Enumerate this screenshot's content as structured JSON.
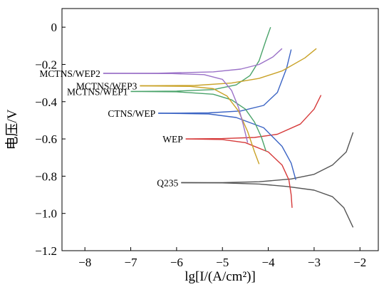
{
  "chart_data": {
    "type": "line",
    "xlabel": "lg[I/(A/cm²)]",
    "ylabel": "电压/V",
    "xlim": [
      -8.5,
      -1.6
    ],
    "ylim": [
      -1.2,
      0.1
    ],
    "xticks": [
      -8,
      -7,
      -6,
      -5,
      -4,
      -3,
      -2
    ],
    "yticks": [
      0,
      -0.2,
      -0.4,
      -0.6,
      -0.8,
      -1.0,
      -1.2
    ],
    "xtick_labels": [
      "−8",
      "−7",
      "−6",
      "−5",
      "−4",
      "−3",
      "−2"
    ],
    "ytick_labels": [
      "0",
      "−0.2",
      "−0.4",
      "−0.6",
      "−0.8",
      "−1.0",
      "−1.2"
    ],
    "grid": false,
    "series": [
      {
        "name": "Q235",
        "color": "#555555",
        "label_side": "left",
        "anodic": [
          [
            -5.9,
            -0.835
          ],
          [
            -5.0,
            -0.835
          ],
          [
            -4.2,
            -0.83
          ],
          [
            -3.5,
            -0.815
          ],
          [
            -3.0,
            -0.79
          ],
          [
            -2.6,
            -0.74
          ],
          [
            -2.3,
            -0.67
          ],
          [
            -2.15,
            -0.565
          ]
        ],
        "cathodic": [
          [
            -5.9,
            -0.835
          ],
          [
            -5.0,
            -0.836
          ],
          [
            -4.2,
            -0.842
          ],
          [
            -3.6,
            -0.855
          ],
          [
            -3.0,
            -0.875
          ],
          [
            -2.6,
            -0.91
          ],
          [
            -2.35,
            -0.97
          ],
          [
            -2.15,
            -1.075
          ]
        ]
      },
      {
        "name": "WEP",
        "color": "#d63a3a",
        "label_side": "left",
        "anodic": [
          [
            -5.8,
            -0.6
          ],
          [
            -5.0,
            -0.598
          ],
          [
            -4.3,
            -0.592
          ],
          [
            -3.8,
            -0.575
          ],
          [
            -3.3,
            -0.52
          ],
          [
            -3.0,
            -0.44
          ],
          [
            -2.85,
            -0.365
          ]
        ],
        "cathodic": [
          [
            -5.8,
            -0.6
          ],
          [
            -5.0,
            -0.603
          ],
          [
            -4.5,
            -0.62
          ],
          [
            -4.0,
            -0.67
          ],
          [
            -3.7,
            -0.74
          ],
          [
            -3.55,
            -0.82
          ],
          [
            -3.5,
            -0.9
          ],
          [
            -3.48,
            -0.97
          ]
        ]
      },
      {
        "name": "CTNS/WEP",
        "color": "#3b64c4",
        "label_side": "left",
        "anodic": [
          [
            -6.4,
            -0.462
          ],
          [
            -5.3,
            -0.46
          ],
          [
            -4.6,
            -0.45
          ],
          [
            -4.1,
            -0.42
          ],
          [
            -3.8,
            -0.35
          ],
          [
            -3.6,
            -0.22
          ],
          [
            -3.5,
            -0.12
          ]
        ],
        "cathodic": [
          [
            -6.4,
            -0.462
          ],
          [
            -5.3,
            -0.466
          ],
          [
            -4.7,
            -0.485
          ],
          [
            -4.1,
            -0.54
          ],
          [
            -3.7,
            -0.64
          ],
          [
            -3.5,
            -0.73
          ],
          [
            -3.4,
            -0.82
          ]
        ]
      },
      {
        "name": "MCTNS/WEP1",
        "color": "#4aa36a",
        "label_side": "left",
        "anodic": [
          [
            -7.0,
            -0.345
          ],
          [
            -6.0,
            -0.343
          ],
          [
            -5.2,
            -0.335
          ],
          [
            -4.7,
            -0.31
          ],
          [
            -4.4,
            -0.26
          ],
          [
            -4.2,
            -0.18
          ],
          [
            -4.05,
            -0.07
          ],
          [
            -3.95,
            0.0
          ]
        ],
        "cathodic": [
          [
            -7.0,
            -0.345
          ],
          [
            -6.0,
            -0.347
          ],
          [
            -5.2,
            -0.36
          ],
          [
            -4.8,
            -0.39
          ],
          [
            -4.5,
            -0.44
          ],
          [
            -4.3,
            -0.51
          ],
          [
            -4.15,
            -0.59
          ],
          [
            -4.05,
            -0.665
          ]
        ]
      },
      {
        "name": "MCTNS/WEP3",
        "color": "#c9a227",
        "label_side": "left",
        "anodic": [
          [
            -6.8,
            -0.315
          ],
          [
            -5.6,
            -0.313
          ],
          [
            -4.8,
            -0.3
          ],
          [
            -4.2,
            -0.275
          ],
          [
            -3.7,
            -0.235
          ],
          [
            -3.2,
            -0.165
          ],
          [
            -2.95,
            -0.115
          ]
        ],
        "cathodic": [
          [
            -6.8,
            -0.315
          ],
          [
            -5.7,
            -0.318
          ],
          [
            -5.2,
            -0.33
          ],
          [
            -4.9,
            -0.37
          ],
          [
            -4.65,
            -0.45
          ],
          [
            -4.45,
            -0.56
          ],
          [
            -4.3,
            -0.67
          ],
          [
            -4.2,
            -0.735
          ]
        ]
      },
      {
        "name": "MCTNS/WEP2",
        "color": "#9b72c8",
        "label_side": "left",
        "anodic": [
          [
            -7.6,
            -0.248
          ],
          [
            -6.4,
            -0.247
          ],
          [
            -5.2,
            -0.24
          ],
          [
            -4.6,
            -0.225
          ],
          [
            -4.2,
            -0.2
          ],
          [
            -3.9,
            -0.16
          ],
          [
            -3.7,
            -0.115
          ]
        ],
        "cathodic": [
          [
            -7.6,
            -0.248
          ],
          [
            -6.1,
            -0.249
          ],
          [
            -5.4,
            -0.255
          ],
          [
            -5.0,
            -0.28
          ],
          [
            -4.8,
            -0.34
          ],
          [
            -4.65,
            -0.43
          ],
          [
            -4.55,
            -0.52
          ],
          [
            -4.45,
            -0.62
          ]
        ]
      }
    ]
  }
}
